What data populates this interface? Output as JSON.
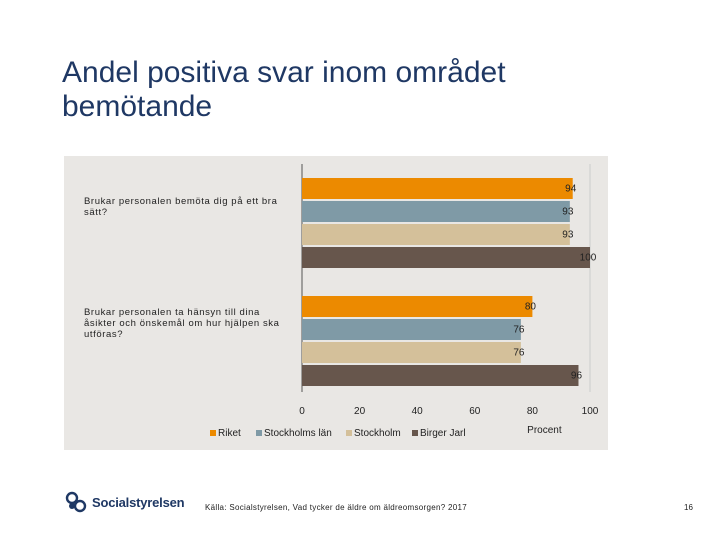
{
  "title": "Andel positiva svar inom området bemötande",
  "chart_data": {
    "type": "bar",
    "orientation": "horizontal",
    "categories": [
      "Brukar personalen bemöta dig på ett bra sätt?",
      "Brukar personalen ta hänsyn till dina åsikter och önskemål om hur hjälpen ska utföras?"
    ],
    "series": [
      {
        "name": "Riket",
        "color": "#ec8a00",
        "values": [
          94,
          80
        ]
      },
      {
        "name": "Stockholms län",
        "color": "#7f9aa6",
        "values": [
          93,
          76
        ]
      },
      {
        "name": "Stockholm",
        "color": "#d4c09a",
        "values": [
          93,
          76
        ]
      },
      {
        "name": "Birger Jarl",
        "color": "#67564c",
        "values": [
          100,
          96
        ]
      }
    ],
    "value_labels": [
      [
        "94",
        "93",
        "93",
        "100"
      ],
      [
        "80",
        "76",
        "76",
        "96"
      ]
    ],
    "xlim": [
      0,
      100
    ],
    "xticks": [
      0,
      20,
      40,
      60,
      80,
      100
    ],
    "xlabel": "Procent",
    "legend_position": "bottom-left"
  },
  "footer": {
    "brand": "Socialstyrelsen",
    "source": "Källa: Socialstyrelsen, Vad tycker de äldre om äldreomsorgen? 2017",
    "page": "16"
  }
}
